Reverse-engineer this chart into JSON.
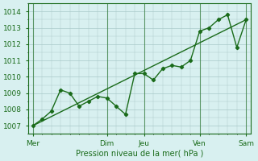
{
  "title": "",
  "xlabel": "Pression niveau de la mer( hPa )",
  "bg_color": "#d8f0f0",
  "grid_color": "#a8c8c8",
  "line_color": "#1a6b1a",
  "x_tick_labels": [
    "Mer",
    "Dim",
    "Jeu",
    "Ven",
    "Sam"
  ],
  "x_tick_positions": [
    0,
    8,
    12,
    18,
    23
  ],
  "ylim": [
    1006.5,
    1014.5
  ],
  "yticks": [
    1007,
    1008,
    1009,
    1010,
    1011,
    1012,
    1013,
    1014
  ],
  "data_x": [
    0,
    1,
    2,
    3,
    4,
    5,
    6,
    7,
    8,
    9,
    10,
    11,
    12,
    13,
    14,
    15,
    16,
    17,
    18,
    19,
    20,
    21,
    22,
    23
  ],
  "data_y": [
    1007.0,
    1007.4,
    1007.9,
    1009.2,
    1009.0,
    1008.2,
    1008.5,
    1008.8,
    1008.7,
    1008.2,
    1007.7,
    1010.2,
    1010.2,
    1009.8,
    1010.5,
    1010.7,
    1010.6,
    1011.0,
    1012.8,
    1013.0,
    1013.5,
    1013.8,
    1011.8,
    1013.5
  ],
  "trend_x": [
    0,
    23
  ],
  "trend_y": [
    1007.0,
    1013.5
  ]
}
